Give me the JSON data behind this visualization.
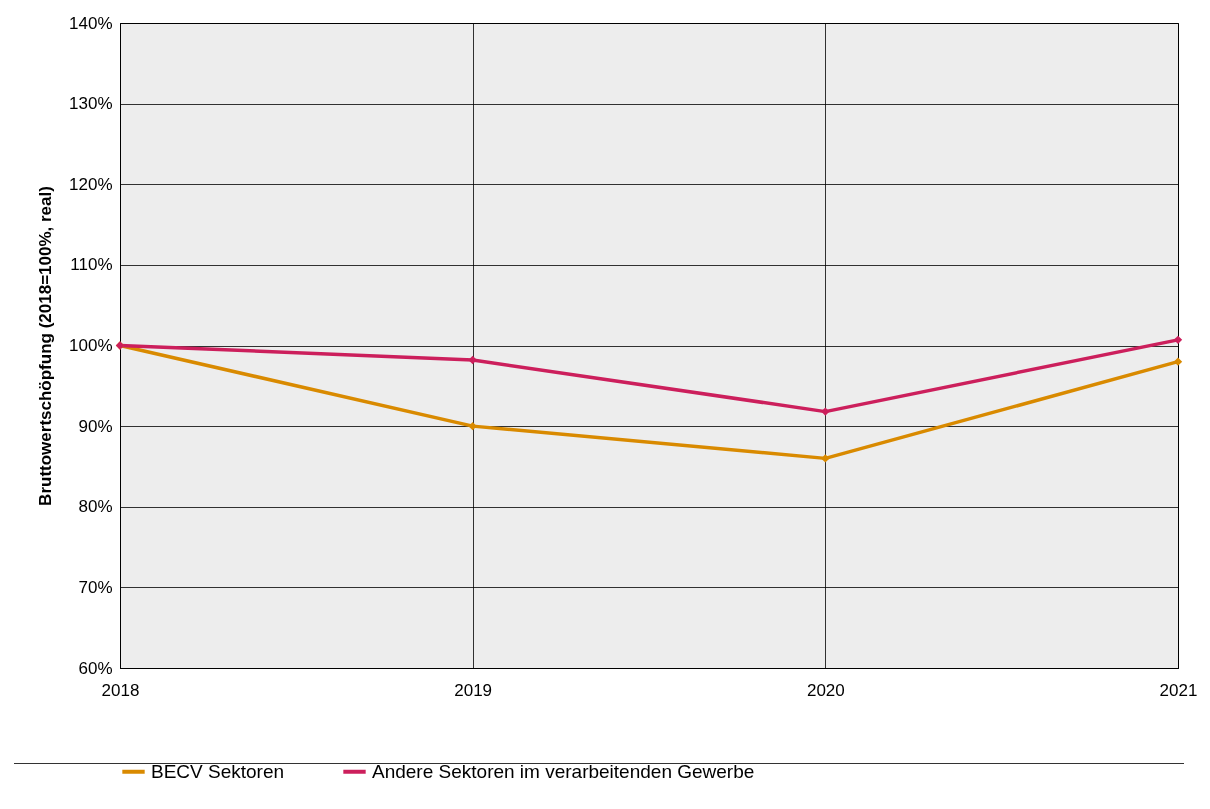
{
  "chart_data": {
    "type": "line",
    "ylabel": "Bruttowertschöpfung (2018=100%, real)",
    "x": [
      2018,
      2019,
      2020,
      2021
    ],
    "series": [
      {
        "name": "BECV Sektoren",
        "color": "#d98a00",
        "values": [
          100,
          90,
          86,
          98
        ]
      },
      {
        "name": "Andere Sektoren im verarbeitenden Gewerbe",
        "color": "#cc1f5c",
        "values": [
          100,
          98.2,
          91.8,
          100.7
        ]
      }
    ],
    "xlim": [
      2018,
      2021
    ],
    "xticks": [
      2018,
      2019,
      2020,
      2021
    ],
    "ylim": [
      60,
      140
    ],
    "yticks": [
      {
        "value": 60,
        "label": "60%"
      },
      {
        "value": 70,
        "label": "70%"
      },
      {
        "value": 80,
        "label": "80%"
      },
      {
        "value": 90,
        "label": "90%"
      },
      {
        "value": 100,
        "label": "100%"
      },
      {
        "value": 110,
        "label": "110%"
      },
      {
        "value": 120,
        "label": "120%"
      },
      {
        "value": 130,
        "label": "130%"
      },
      {
        "value": 140,
        "label": "140%"
      }
    ],
    "grid": true,
    "legend": "bottom",
    "marker": "diamond",
    "line_style": "solid"
  }
}
